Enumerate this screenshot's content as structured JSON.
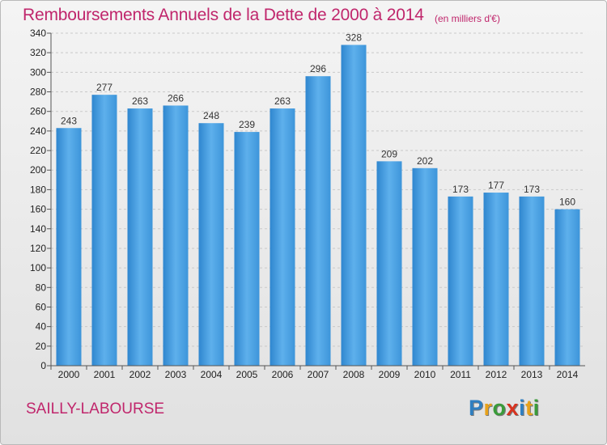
{
  "title": "Remboursements Annuels de la Dette de 2000 à 2014",
  "subtitle": "(en milliers d'€)",
  "commune": "SAILLY-LABOURSE",
  "logo": {
    "letters": [
      "P",
      "r",
      "o",
      "x",
      "i",
      "t",
      "i"
    ],
    "colors": [
      "#2f7fc1",
      "#e8a21b",
      "#3a9b3a",
      "#d8331f",
      "#2f7fc1",
      "#e8a21b",
      "#3a9b3a"
    ]
  },
  "colors": {
    "bar": "#3f98dc",
    "bar_light": "#62b4ee",
    "title": "#c0266c"
  },
  "chart_data": {
    "type": "bar",
    "categories": [
      "2000",
      "2001",
      "2002",
      "2003",
      "2004",
      "2005",
      "2006",
      "2007",
      "2008",
      "2009",
      "2010",
      "2011",
      "2012",
      "2013",
      "2014"
    ],
    "values": [
      243,
      277,
      263,
      266,
      248,
      239,
      263,
      296,
      328,
      209,
      202,
      173,
      177,
      173,
      160
    ],
    "ylim": [
      0,
      340
    ],
    "yticks": [
      0,
      20,
      40,
      60,
      80,
      100,
      120,
      140,
      160,
      180,
      200,
      220,
      240,
      260,
      280,
      300,
      320,
      340
    ],
    "grid": true
  }
}
